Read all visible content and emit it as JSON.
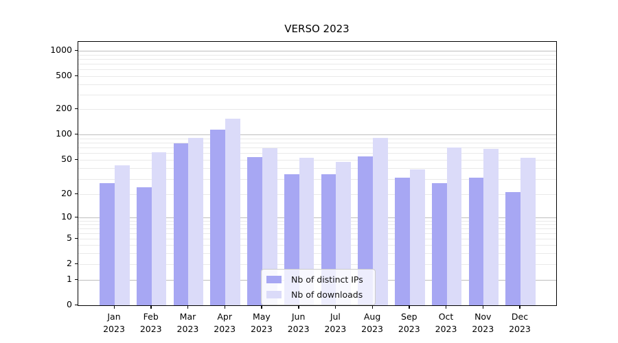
{
  "chart_data": {
    "type": "bar",
    "title": "VERSO 2023",
    "categories": [
      "Jan 2023",
      "Feb 2023",
      "Mar 2023",
      "Apr 2023",
      "May 2023",
      "Jun 2023",
      "Jul 2023",
      "Aug 2023",
      "Sep 2023",
      "Oct 2023",
      "Nov 2023",
      "Dec 2023"
    ],
    "series": [
      {
        "name": "Nb of distinct IPs",
        "color": "#a7a7f3",
        "values": [
          27,
          24,
          78,
          115,
          54,
          34,
          34,
          55,
          31,
          27,
          31,
          21
        ]
      },
      {
        "name": "Nb of downloads",
        "color": "#dbdbf9",
        "values": [
          43,
          62,
          91,
          154,
          69,
          53,
          47,
          91,
          39,
          70,
          67,
          53
        ]
      }
    ],
    "xlabel": "",
    "ylabel": "",
    "yscale": "symlog",
    "yticks": [
      0,
      1,
      2,
      5,
      10,
      20,
      50,
      100,
      200,
      500,
      1000
    ],
    "ylim": [
      0,
      1200
    ],
    "grid": true,
    "legend_position": "inside lower-center",
    "colors": {
      "major_grid": "#bdbdbd",
      "minor_grid": "#e9e9e9",
      "axis": "#000000",
      "background": "#ffffff"
    }
  }
}
